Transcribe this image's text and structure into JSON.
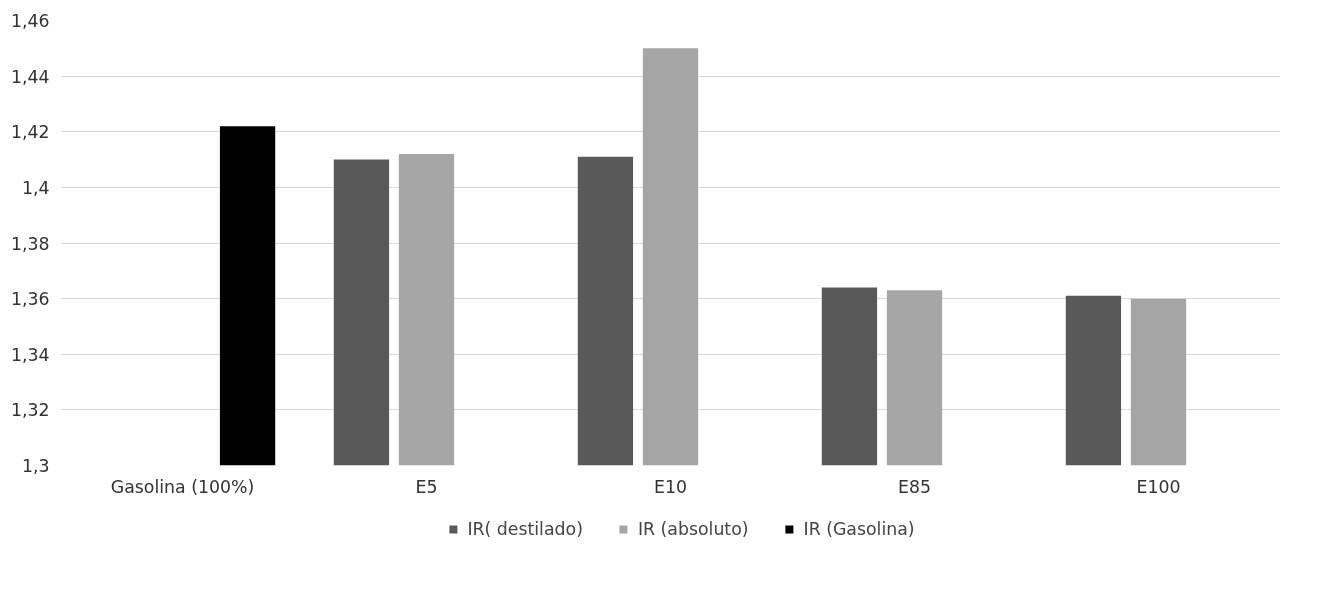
{
  "chart_data": {
    "type": "bar",
    "categories": [
      "Gasolina (100%)",
      "E5",
      "E10",
      "E85",
      "E100"
    ],
    "series": [
      {
        "name": "IR( destilado)",
        "color": "#595959",
        "values": [
          null,
          1.41,
          1.411,
          1.364,
          1.361
        ]
      },
      {
        "name": "IR (absoluto)",
        "color": "#a6a6a6",
        "values": [
          null,
          1.412,
          1.45,
          1.363,
          1.36
        ]
      },
      {
        "name": "IR (Gasolina)",
        "color": "#000000",
        "values": [
          1.422,
          null,
          null,
          null,
          null
        ]
      }
    ],
    "ylim": [
      1.3,
      1.46
    ],
    "yticks": [
      {
        "value": 1.3,
        "label": "1,3"
      },
      {
        "value": 1.32,
        "label": "1,32"
      },
      {
        "value": 1.34,
        "label": "1,34"
      },
      {
        "value": 1.36,
        "label": "1,36"
      },
      {
        "value": 1.38,
        "label": "1,38"
      },
      {
        "value": 1.4,
        "label": "1,4"
      },
      {
        "value": 1.42,
        "label": "1,42"
      },
      {
        "value": 1.44,
        "label": "1,44"
      },
      {
        "value": 1.46,
        "label": "1,46"
      }
    ],
    "grid": "y",
    "legend": "bottom"
  }
}
